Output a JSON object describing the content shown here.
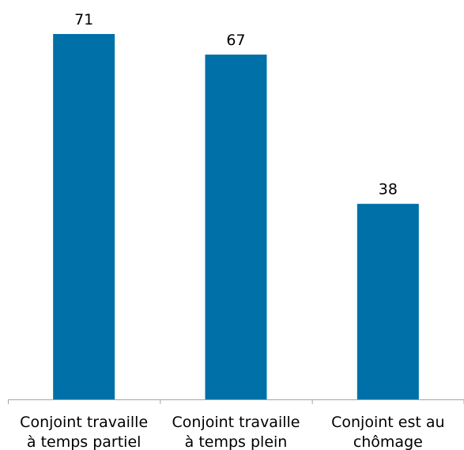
{
  "chart_data": {
    "type": "bar",
    "categories": [
      [
        "Conjoint travaille",
        "à temps partiel"
      ],
      [
        "Conjoint travaille",
        "à temps plein"
      ],
      [
        "Conjoint est au",
        "chômage"
      ]
    ],
    "values": [
      71,
      67,
      38
    ],
    "value_labels": [
      "71",
      "67",
      "38"
    ],
    "title": "",
    "xlabel": "",
    "ylabel": "",
    "ylim": [
      0,
      80
    ],
    "grid": false,
    "legend": "none",
    "bar_color": "#0070a8"
  }
}
